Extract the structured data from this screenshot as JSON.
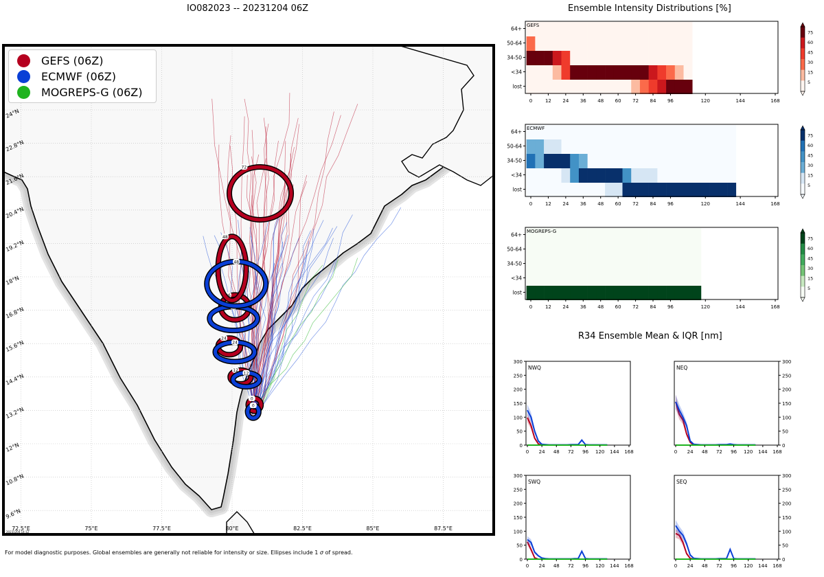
{
  "page": {
    "title": "IO082023 -- 20231204 06Z",
    "footnote_prefix": "For model diagnostic purposes. Global ensembles are generally not reliable for intensity or size. Ellipses include 1 ",
    "footnote_sigma": "σ",
    "footnote_suffix": " of spread.",
    "map_stamp": "20231204 14:12"
  },
  "colors": {
    "gefs": "#b5001f",
    "ecmwf": "#0a3fd6",
    "mogreps": "#1fb31f",
    "land": "#f8f8f8",
    "ocean": "#ffffff",
    "coast_glow": "#cfcfcf"
  },
  "legend": [
    {
      "label": "GEFS (06Z)",
      "color": "#b5001f"
    },
    {
      "label": "ECMWF (06Z)",
      "color": "#0a3fd6"
    },
    {
      "label": "MOGREPS-G (06Z)",
      "color": "#1fb31f"
    }
  ],
  "map": {
    "lon_labels": [
      "72.5°E",
      "75°E",
      "77.5°E",
      "80°E",
      "82.5°E",
      "85°E",
      "87.5°E"
    ],
    "lat_labels": [
      "24°N",
      "22.8°N",
      "21.6°N",
      "20.4°N",
      "19.2°N",
      "18°N",
      "16.8°N",
      "15.6°N",
      "14.4°N",
      "13.2°N",
      "12°N",
      "10.8°N",
      "9.6°N"
    ],
    "ellipses": [
      {
        "model": "GEFS",
        "hour": "0",
        "lon": 80.8,
        "lat": 13.4,
        "rx": 0.18,
        "ry": 0.18
      },
      {
        "model": "ECMWF",
        "hour": "0",
        "lon": 80.75,
        "lat": 13.15,
        "rx": 0.15,
        "ry": 0.18
      },
      {
        "model": "GEFS",
        "hour": "12",
        "lon": 80.3,
        "lat": 14.4,
        "rx": 0.32,
        "ry": 0.2
      },
      {
        "model": "ECMWF",
        "hour": "12",
        "lon": 80.5,
        "lat": 14.3,
        "rx": 0.42,
        "ry": 0.2
      },
      {
        "model": "GEFS",
        "hour": "24",
        "lon": 79.9,
        "lat": 15.5,
        "rx": 0.35,
        "ry": 0.25
      },
      {
        "model": "ECMWF",
        "hour": "24",
        "lon": 80.1,
        "lat": 15.3,
        "rx": 0.65,
        "ry": 0.3
      },
      {
        "model": "GEFS",
        "hour": "36",
        "lon": 80.1,
        "lat": 16.9,
        "rx": 0.45,
        "ry": 0.4
      },
      {
        "model": "ECMWF",
        "hour": "36",
        "lon": 80.05,
        "lat": 16.5,
        "rx": 0.8,
        "ry": 0.38
      },
      {
        "model": "GEFS",
        "hour": "48",
        "lon": 80.0,
        "lat": 18.3,
        "rx": 0.45,
        "ry": 1.1
      },
      {
        "model": "ECMWF",
        "hour": "48",
        "lon": 80.15,
        "lat": 17.75,
        "rx": 1.0,
        "ry": 0.75
      },
      {
        "model": "GEFS",
        "hour": "72",
        "lon": 81.0,
        "lat": 21.0,
        "rx": 1.05,
        "ry": 0.9
      }
    ]
  },
  "intensity": {
    "title": "Ensemble Intensity Distributions [%]",
    "rows": [
      "64+",
      "50-64",
      "34-50",
      "<34",
      "lost"
    ],
    "hours": [
      "0",
      "12",
      "24",
      "36",
      "48",
      "60",
      "72",
      "84",
      "96",
      "120",
      "144",
      "168"
    ],
    "colorbar_ticks": [
      "75",
      "60",
      "45",
      "30",
      "15",
      "5"
    ],
    "panels": [
      {
        "name": "GEFS",
        "cmap": [
          "#fff5f0",
          "#fcbba1",
          "#fb6a4a",
          "#ef3b2c",
          "#cb181d",
          "#67000d"
        ],
        "cells": [
          [
            0,
            0,
            0,
            0,
            0,
            0,
            0,
            0,
            0,
            0,
            0,
            0,
            0,
            0,
            0,
            0,
            0,
            0,
            0
          ],
          [
            2,
            0,
            0,
            0,
            0,
            0,
            0,
            0,
            0,
            0,
            0,
            0,
            0,
            0,
            0,
            0,
            0,
            0,
            0
          ],
          [
            5,
            5,
            5,
            4,
            3,
            0,
            0,
            0,
            0,
            0,
            0,
            0,
            0,
            0,
            0,
            0,
            0,
            0,
            0
          ],
          [
            0,
            0,
            0,
            1,
            3,
            5,
            5,
            5,
            5,
            5,
            5,
            5,
            5,
            5,
            4,
            3,
            2,
            1,
            0
          ],
          [
            0,
            0,
            0,
            0,
            0,
            0,
            0,
            0,
            0,
            0,
            0,
            0,
            1,
            2,
            3,
            4,
            5,
            5,
            5
          ]
        ],
        "last_col": 18
      },
      {
        "name": "ECMWF",
        "cmap": [
          "#f7fbff",
          "#d6e6f4",
          "#6baed6",
          "#4292c6",
          "#2171b5",
          "#08306b"
        ],
        "cells": [
          [
            0,
            0,
            0,
            0,
            0,
            0,
            0,
            0,
            0,
            0,
            0,
            0,
            0,
            0,
            0,
            0,
            0,
            0,
            0,
            0,
            0,
            0,
            0,
            0
          ],
          [
            2,
            2,
            1,
            1,
            0,
            0,
            0,
            0,
            0,
            0,
            0,
            0,
            0,
            0,
            0,
            0,
            0,
            0,
            0,
            0,
            0,
            0,
            0,
            0
          ],
          [
            4,
            2,
            5,
            5,
            5,
            3,
            2,
            0,
            0,
            0,
            0,
            0,
            0,
            0,
            0,
            0,
            0,
            0,
            0,
            0,
            0,
            0,
            0,
            0
          ],
          [
            0,
            0,
            0,
            0,
            1,
            3,
            5,
            5,
            5,
            5,
            5,
            3,
            1,
            1,
            1,
            0,
            0,
            0,
            0,
            0,
            0,
            0,
            0,
            0
          ],
          [
            0,
            0,
            0,
            0,
            0,
            0,
            0,
            0,
            0,
            1,
            1,
            5,
            5,
            5,
            5,
            5,
            5,
            5,
            5,
            5,
            5,
            5,
            5,
            5
          ]
        ],
        "last_col": 23
      },
      {
        "name": "MOGREPS-G",
        "cmap": [
          "#f7fcf5",
          "#c7e9c0",
          "#74c476",
          "#41ab5d",
          "#238b45",
          "#00441b"
        ],
        "cells": [
          [
            0,
            0,
            0,
            0,
            0,
            0,
            0,
            0,
            0,
            0,
            0,
            0,
            0,
            0,
            0,
            0,
            0,
            0,
            0,
            0
          ],
          [
            0,
            0,
            0,
            0,
            0,
            0,
            0,
            0,
            0,
            0,
            0,
            0,
            0,
            0,
            0,
            0,
            0,
            0,
            0,
            0
          ],
          [
            0,
            0,
            0,
            0,
            0,
            0,
            0,
            0,
            0,
            0,
            0,
            0,
            0,
            0,
            0,
            0,
            0,
            0,
            0,
            0
          ],
          [
            0,
            0,
            0,
            0,
            0,
            0,
            0,
            0,
            0,
            0,
            0,
            0,
            0,
            0,
            0,
            0,
            0,
            0,
            0,
            0
          ],
          [
            5,
            5,
            5,
            5,
            5,
            5,
            5,
            5,
            5,
            5,
            5,
            5,
            5,
            5,
            5,
            5,
            5,
            5,
            5,
            5
          ]
        ],
        "last_col": 19
      }
    ]
  },
  "chart_data": [
    {
      "type": "line",
      "title": "R34 Ensemble Mean & IQR [nm]",
      "panels": [
        {
          "name": "NWQ",
          "x": [
            0,
            6,
            12,
            18,
            24,
            30,
            36,
            42,
            48,
            54,
            60,
            66,
            72,
            78,
            84,
            90,
            96,
            102,
            108,
            114,
            120,
            126,
            132
          ],
          "series": [
            {
              "name": "GEFS",
              "values": [
                98,
                70,
                25,
                5,
                0,
                0,
                0,
                0,
                0,
                0,
                0,
                0,
                0,
                0,
                0,
                0,
                0,
                0,
                0,
                0,
                0,
                0,
                0
              ]
            },
            {
              "name": "ECMWF",
              "values": [
                125,
                100,
                50,
                15,
                3,
                2,
                1,
                1,
                1,
                1,
                1,
                1,
                2,
                2,
                2,
                18,
                2,
                1,
                1,
                1,
                1,
                1,
                1
              ]
            },
            {
              "name": "MOGREPS-G",
              "values": [
                0,
                0,
                0,
                0,
                0,
                0,
                0,
                0,
                0,
                0,
                0,
                0,
                0,
                0,
                0,
                0,
                0,
                0,
                0,
                0,
                0,
                0,
                0
              ]
            }
          ]
        },
        {
          "name": "NEQ",
          "x": [
            0,
            6,
            12,
            18,
            24,
            30,
            36,
            42,
            48,
            54,
            60,
            66,
            72,
            78,
            84,
            90,
            96,
            102,
            108,
            114,
            120,
            126,
            132
          ],
          "series": [
            {
              "name": "GEFS",
              "values": [
                155,
                110,
                90,
                40,
                10,
                0,
                0,
                0,
                0,
                0,
                0,
                0,
                0,
                0,
                0,
                0,
                0,
                0,
                0,
                0,
                0,
                0,
                0
              ]
            },
            {
              "name": "ECMWF",
              "values": [
                155,
                125,
                100,
                70,
                15,
                3,
                2,
                1,
                1,
                1,
                1,
                1,
                2,
                2,
                2,
                4,
                2,
                1,
                1,
                1,
                1,
                1,
                1
              ]
            },
            {
              "name": "MOGREPS-G",
              "values": [
                0,
                0,
                0,
                0,
                0,
                0,
                0,
                0,
                0,
                0,
                0,
                0,
                0,
                0,
                0,
                0,
                0,
                0,
                0,
                0,
                0,
                0,
                0
              ]
            }
          ]
        },
        {
          "name": "SWQ",
          "x": [
            0,
            6,
            12,
            18,
            24,
            30,
            36,
            42,
            48,
            54,
            60,
            66,
            72,
            78,
            84,
            90,
            96,
            102,
            108,
            114,
            120,
            126,
            132
          ],
          "series": [
            {
              "name": "GEFS",
              "values": [
                62,
                35,
                5,
                0,
                0,
                0,
                0,
                0,
                0,
                0,
                0,
                0,
                0,
                0,
                0,
                0,
                0,
                0,
                0,
                0,
                0,
                0,
                0
              ]
            },
            {
              "name": "ECMWF",
              "values": [
                70,
                60,
                25,
                12,
                4,
                2,
                1,
                1,
                1,
                1,
                1,
                1,
                1,
                2,
                2,
                28,
                2,
                1,
                1,
                1,
                1,
                1,
                1
              ]
            },
            {
              "name": "MOGREPS-G",
              "values": [
                0,
                0,
                0,
                0,
                0,
                0,
                0,
                0,
                0,
                0,
                0,
                0,
                0,
                0,
                0,
                0,
                0,
                0,
                0,
                0,
                0,
                0,
                0
              ]
            }
          ]
        },
        {
          "name": "SEQ",
          "x": [
            0,
            6,
            12,
            18,
            24,
            30,
            36,
            42,
            48,
            54,
            60,
            66,
            72,
            78,
            84,
            90,
            96,
            102,
            108,
            114,
            120,
            126,
            132
          ],
          "series": [
            {
              "name": "GEFS",
              "values": [
                92,
                85,
                60,
                20,
                3,
                0,
                0,
                0,
                0,
                0,
                0,
                0,
                0,
                0,
                0,
                0,
                0,
                0,
                0,
                0,
                0,
                0,
                0
              ]
            },
            {
              "name": "ECMWF",
              "values": [
                120,
                100,
                85,
                55,
                15,
                3,
                2,
                1,
                1,
                1,
                1,
                1,
                2,
                2,
                2,
                35,
                2,
                1,
                1,
                1,
                1,
                1,
                1
              ]
            },
            {
              "name": "MOGREPS-G",
              "values": [
                0,
                0,
                0,
                0,
                0,
                0,
                0,
                0,
                0,
                0,
                0,
                0,
                0,
                0,
                0,
                0,
                0,
                0,
                0,
                0,
                0,
                0,
                0
              ]
            }
          ]
        }
      ],
      "ylim": [
        0,
        300
      ],
      "yticks": [
        "0",
        "50",
        "100",
        "150",
        "200",
        "250",
        "300"
      ],
      "xticks": [
        "0",
        "24",
        "48",
        "72",
        "96",
        "120",
        "144",
        "168"
      ],
      "xlim": [
        0,
        168
      ]
    }
  ]
}
